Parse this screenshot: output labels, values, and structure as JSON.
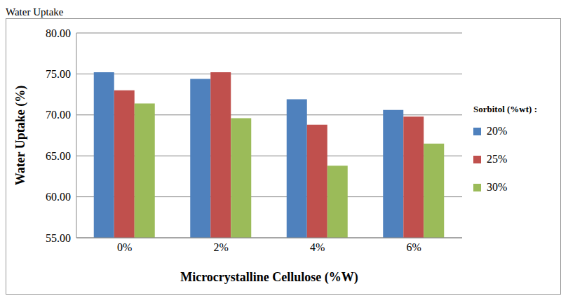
{
  "chart_data": {
    "type": "bar",
    "title": "Water Uptake",
    "x_label": "Microcrystalline Cellulose  (%W)",
    "y_label": "Water Uptake (%)",
    "legend_title": "Sorbitol (%wt) :",
    "categories": [
      "0%",
      "2%",
      "4%",
      "6%"
    ],
    "series": [
      {
        "name": "20%",
        "color": "#4f81bd",
        "values": [
          75.2,
          74.4,
          71.9,
          70.6
        ]
      },
      {
        "name": "25%",
        "color": "#c0504d",
        "values": [
          73.0,
          75.2,
          68.8,
          69.8
        ]
      },
      {
        "name": "30%",
        "color": "#9bbb59",
        "values": [
          71.4,
          69.6,
          63.8,
          66.5
        ]
      }
    ],
    "ylim": [
      55,
      80
    ],
    "yticks": [
      {
        "value": 55,
        "label": "55.00"
      },
      {
        "value": 60,
        "label": "60.00"
      },
      {
        "value": 65,
        "label": "65.00"
      },
      {
        "value": 70,
        "label": "70.00"
      },
      {
        "value": 75,
        "label": "75.00"
      },
      {
        "value": 80,
        "label": "80.00"
      }
    ],
    "grid": true,
    "legend": "right"
  }
}
